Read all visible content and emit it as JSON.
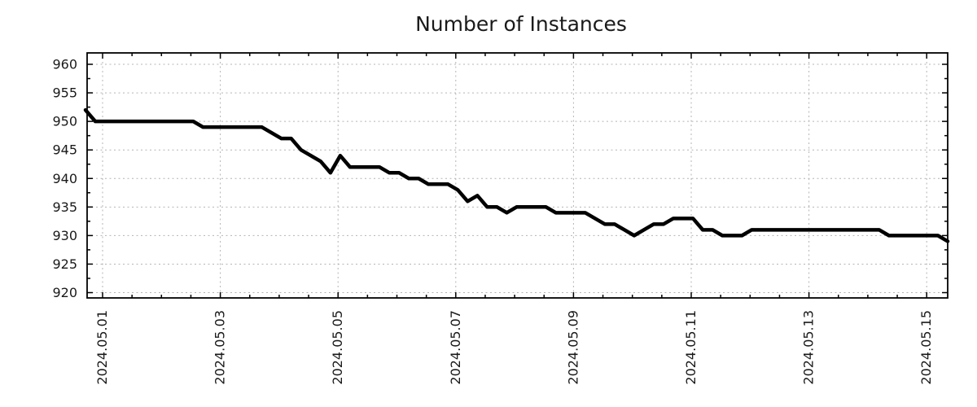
{
  "page": {
    "background": "#ffffff"
  },
  "chart_data": {
    "type": "line",
    "title": "Number of Instances",
    "series_name": "instances",
    "colors": {
      "line": "#000000",
      "grid": "#b4b4b4",
      "axis": "#000000",
      "text": "#1a1a1a",
      "background": "#ffffff"
    },
    "legend": "none",
    "grid": "dashed horizontal at y major ticks, dashed vertical at x major ticks",
    "x_axis": {
      "unit": "date",
      "tick_labels": [
        "2024.05.01",
        "2024.05.03",
        "2024.05.05",
        "2024.05.07",
        "2024.05.09",
        "2024.05.11",
        "2024.05.13",
        "2024.05.15"
      ],
      "tick_day_offsets": [
        0,
        2,
        4,
        6,
        8,
        10,
        12,
        14
      ],
      "minor_tick_interval_days": 0.5,
      "range_days": [
        -0.263,
        14.357
      ]
    },
    "y_axis": {
      "tick_labels": [
        "960",
        "955",
        "950",
        "945",
        "940",
        "935",
        "930",
        "925",
        "920"
      ],
      "tick_values": [
        960,
        955,
        950,
        945,
        940,
        935,
        930,
        925,
        920
      ],
      "minor_tick_interval": 2.5,
      "range": [
        919.1,
        962.0
      ]
    },
    "points": {
      "x_start_day": -0.2905,
      "x_step_day": 0.16645,
      "values": [
        952,
        950,
        950,
        950,
        950,
        950,
        950,
        950,
        950,
        950,
        950,
        950,
        949,
        949,
        949,
        949,
        949,
        949,
        949,
        948,
        947,
        947,
        945,
        944,
        943,
        941,
        944,
        942,
        942,
        942,
        942,
        941,
        941,
        940,
        940,
        939,
        939,
        939,
        938,
        936,
        937,
        935,
        935,
        934,
        935,
        935,
        935,
        935,
        934,
        934,
        934,
        934,
        933,
        932,
        932,
        931,
        930,
        931,
        932,
        932,
        933,
        933,
        933,
        931,
        931,
        930,
        930,
        930,
        931,
        931,
        931,
        931,
        931,
        931,
        931,
        931,
        931,
        931,
        931,
        931,
        931,
        931,
        930,
        930,
        930,
        930,
        930,
        930,
        929
      ]
    }
  }
}
